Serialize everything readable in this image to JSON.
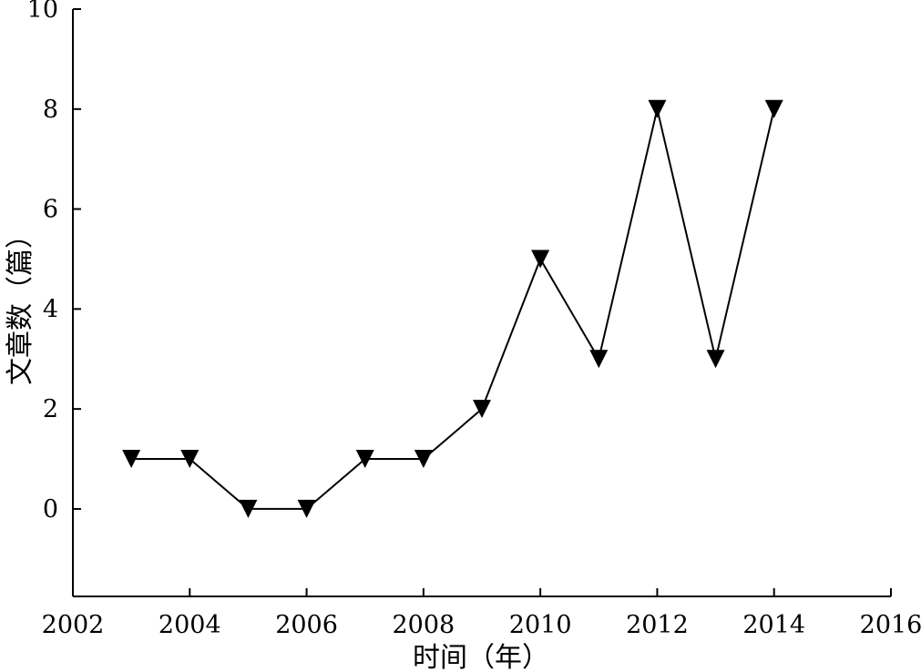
{
  "chart_data": {
    "type": "line",
    "title": "",
    "xlabel": "时间（年）",
    "ylabel": "文章数（篇）",
    "xlim": [
      2002,
      2016
    ],
    "ylim": [
      -1.75,
      10
    ],
    "x_ticks": [
      2002,
      2004,
      2006,
      2008,
      2010,
      2012,
      2014,
      2016
    ],
    "y_ticks": [
      0,
      2,
      4,
      6,
      8,
      10
    ],
    "grid": false,
    "legend": "none",
    "series": [
      {
        "marker": "triangle-down",
        "color": "#000000",
        "x": [
          2003,
          2004,
          2005,
          2006,
          2007,
          2008,
          2009,
          2010,
          2011,
          2012,
          2013,
          2014
        ],
        "y": [
          1,
          1,
          0,
          0,
          1,
          1,
          2,
          5,
          3,
          8,
          3,
          8
        ]
      }
    ]
  }
}
